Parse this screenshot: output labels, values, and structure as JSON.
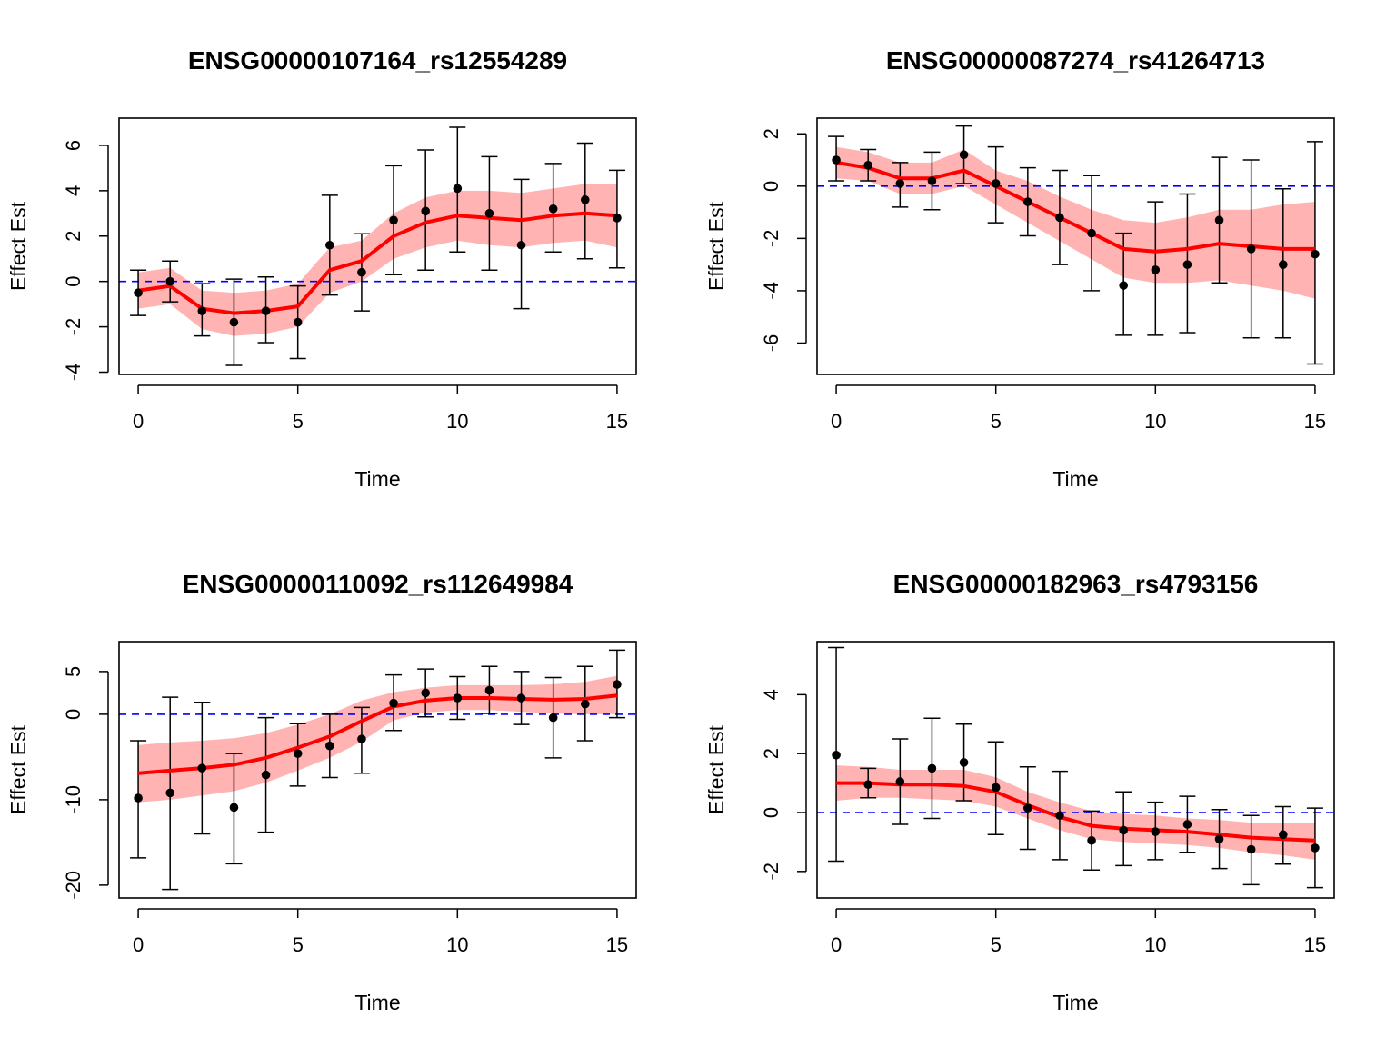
{
  "figure": {
    "colors": {
      "fit": "#ff0000",
      "band": "#ffb3b3",
      "zero_line": "#0000ff",
      "points": "#000000"
    }
  },
  "chart_data": [
    {
      "type": "line",
      "title": "ENSG00000107164_rs12554289",
      "xlabel": "Time",
      "ylabel": "Effect Est",
      "xlim": [
        -0.6,
        15.6
      ],
      "ylim": [
        -4.1,
        7.2
      ],
      "xticks": [
        0,
        5,
        10,
        15
      ],
      "yticks": [
        -4,
        -2,
        0,
        2,
        4,
        6
      ],
      "reference_line": 0,
      "x": [
        0,
        1,
        2,
        3,
        4,
        5,
        6,
        7,
        8,
        9,
        10,
        11,
        12,
        13,
        14,
        15
      ],
      "points": [
        -0.5,
        0.0,
        -1.3,
        -1.8,
        -1.3,
        -1.8,
        1.6,
        0.4,
        2.7,
        3.1,
        4.1,
        3.0,
        1.6,
        3.2,
        3.6,
        2.8
      ],
      "ci_low": [
        -1.5,
        -0.9,
        -2.4,
        -3.7,
        -2.7,
        -3.4,
        -0.6,
        -1.3,
        0.3,
        0.5,
        1.3,
        0.5,
        -1.2,
        1.3,
        1.0,
        0.6
      ],
      "ci_high": [
        0.5,
        0.9,
        -0.1,
        0.1,
        0.2,
        -0.2,
        3.8,
        2.1,
        5.1,
        5.8,
        6.8,
        5.5,
        4.5,
        5.2,
        6.1,
        4.9
      ],
      "fit": [
        -0.4,
        -0.2,
        -1.2,
        -1.4,
        -1.3,
        -1.1,
        0.5,
        0.9,
        2.0,
        2.6,
        2.9,
        2.8,
        2.7,
        2.9,
        3.0,
        2.9
      ],
      "band_low": [
        -1.2,
        -1.0,
        -2.1,
        -2.4,
        -2.3,
        -2.0,
        -0.5,
        0.0,
        1.0,
        1.5,
        1.8,
        1.6,
        1.5,
        1.7,
        1.8,
        1.5
      ],
      "band_high": [
        0.4,
        0.6,
        -0.4,
        -0.5,
        -0.4,
        -0.1,
        1.5,
        1.8,
        3.0,
        3.7,
        4.0,
        4.0,
        3.9,
        4.1,
        4.3,
        4.3
      ]
    },
    {
      "type": "line",
      "title": "ENSG00000087274_rs41264713",
      "xlabel": "Time",
      "ylabel": "Effect Est",
      "xlim": [
        -0.6,
        15.6
      ],
      "ylim": [
        -7.2,
        2.6
      ],
      "xticks": [
        0,
        5,
        10,
        15
      ],
      "yticks": [
        -6,
        -4,
        -2,
        0,
        2
      ],
      "reference_line": 0,
      "x": [
        0,
        1,
        2,
        3,
        4,
        5,
        6,
        7,
        8,
        9,
        10,
        11,
        12,
        13,
        14,
        15
      ],
      "points": [
        1.0,
        0.8,
        0.1,
        0.2,
        1.2,
        0.1,
        -0.6,
        -1.2,
        -1.8,
        -3.8,
        -3.2,
        -3.0,
        -1.3,
        -2.4,
        -3.0,
        -2.6
      ],
      "ci_low": [
        0.2,
        0.2,
        -0.8,
        -0.9,
        0.1,
        -1.4,
        -1.9,
        -3.0,
        -4.0,
        -5.7,
        -5.7,
        -5.6,
        -3.7,
        -5.8,
        -5.8,
        -6.8
      ],
      "ci_high": [
        1.9,
        1.4,
        0.9,
        1.3,
        2.3,
        1.5,
        0.7,
        0.6,
        0.4,
        -1.8,
        -0.6,
        -0.3,
        1.1,
        1.0,
        -0.1,
        1.7
      ],
      "fit": [
        0.9,
        0.7,
        0.3,
        0.3,
        0.6,
        0.0,
        -0.6,
        -1.2,
        -1.8,
        -2.4,
        -2.5,
        -2.4,
        -2.2,
        -2.3,
        -2.4,
        -2.4
      ],
      "band_low": [
        0.3,
        0.2,
        -0.3,
        -0.3,
        0.0,
        -0.7,
        -1.4,
        -2.1,
        -2.8,
        -3.5,
        -3.7,
        -3.7,
        -3.6,
        -3.8,
        -4.0,
        -4.3
      ],
      "band_high": [
        1.5,
        1.3,
        0.9,
        0.9,
        1.4,
        0.6,
        0.2,
        -0.4,
        -0.9,
        -1.3,
        -1.4,
        -1.2,
        -0.9,
        -0.9,
        -0.7,
        -0.6
      ]
    },
    {
      "type": "line",
      "title": "ENSG00000110092_rs112649984",
      "xlabel": "Time",
      "ylabel": "Effect Est",
      "xlim": [
        -0.6,
        15.6
      ],
      "ylim": [
        -21.5,
        8.5
      ],
      "xticks": [
        0,
        5,
        10,
        15
      ],
      "yticks": [
        -20,
        -10,
        0,
        5
      ],
      "reference_line": 0,
      "x": [
        0,
        1,
        2,
        3,
        4,
        5,
        6,
        7,
        8,
        9,
        10,
        11,
        12,
        13,
        14,
        15
      ],
      "points": [
        -9.8,
        -9.2,
        -6.3,
        -10.9,
        -7.1,
        -4.6,
        -3.7,
        -2.9,
        1.3,
        2.5,
        1.9,
        2.8,
        1.9,
        -0.4,
        1.2,
        3.5
      ],
      "ci_low": [
        -16.8,
        -20.5,
        -14.0,
        -17.5,
        -13.8,
        -8.4,
        -7.4,
        -6.9,
        -1.9,
        -0.3,
        -0.6,
        0.1,
        -1.2,
        -5.1,
        -3.1,
        -0.4
      ],
      "ci_high": [
        -3.1,
        2.0,
        1.4,
        -4.6,
        -0.4,
        -1.1,
        0.0,
        0.8,
        4.6,
        5.3,
        4.4,
        5.6,
        5.0,
        4.3,
        5.6,
        7.5
      ],
      "fit": [
        -6.9,
        -6.6,
        -6.3,
        -5.9,
        -5.1,
        -3.9,
        -2.6,
        -0.8,
        0.9,
        1.6,
        1.9,
        1.9,
        1.8,
        1.7,
        1.8,
        2.2
      ],
      "band_low": [
        -10.3,
        -10.0,
        -9.5,
        -9.0,
        -8.0,
        -6.6,
        -5.1,
        -3.2,
        -0.7,
        0.2,
        0.5,
        0.5,
        0.3,
        0.1,
        0.0,
        0.0
      ],
      "band_high": [
        -3.6,
        -3.3,
        -3.1,
        -2.8,
        -2.2,
        -1.2,
        0.0,
        1.6,
        2.6,
        3.1,
        3.4,
        3.4,
        3.4,
        3.5,
        3.8,
        4.5
      ]
    },
    {
      "type": "line",
      "title": "ENSG00000182963_rs4793156",
      "xlabel": "Time",
      "ylabel": "Effect Est",
      "xlim": [
        -0.6,
        15.6
      ],
      "ylim": [
        -2.9,
        5.8
      ],
      "xticks": [
        0,
        5,
        10,
        15
      ],
      "yticks": [
        -2,
        0,
        2,
        4
      ],
      "reference_line": 0,
      "x": [
        0,
        1,
        2,
        3,
        4,
        5,
        6,
        7,
        8,
        9,
        10,
        11,
        12,
        13,
        14,
        15
      ],
      "points": [
        1.95,
        0.95,
        1.05,
        1.5,
        1.7,
        0.85,
        0.15,
        -0.1,
        -0.95,
        -0.6,
        -0.65,
        -0.4,
        -0.9,
        -1.25,
        -0.75,
        -1.2
      ],
      "ci_low": [
        -1.65,
        0.5,
        -0.4,
        -0.2,
        0.4,
        -0.75,
        -1.25,
        -1.6,
        -1.95,
        -1.8,
        -1.6,
        -1.35,
        -1.9,
        -2.45,
        -1.75,
        -2.55
      ],
      "ci_high": [
        5.6,
        1.5,
        2.5,
        3.2,
        3.0,
        2.4,
        1.55,
        1.4,
        0.05,
        0.7,
        0.35,
        0.55,
        0.1,
        -0.1,
        0.2,
        0.15
      ],
      "fit": [
        1.0,
        1.0,
        0.95,
        0.95,
        0.9,
        0.7,
        0.25,
        -0.15,
        -0.45,
        -0.55,
        -0.6,
        -0.65,
        -0.75,
        -0.85,
        -0.9,
        -0.95
      ],
      "band_low": [
        0.4,
        0.5,
        0.5,
        0.45,
        0.4,
        0.2,
        -0.2,
        -0.6,
        -0.9,
        -1.0,
        -1.05,
        -1.1,
        -1.2,
        -1.35,
        -1.45,
        -1.6
      ],
      "band_high": [
        1.6,
        1.55,
        1.45,
        1.45,
        1.45,
        1.2,
        0.7,
        0.35,
        0.05,
        -0.05,
        -0.1,
        -0.2,
        -0.25,
        -0.35,
        -0.35,
        -0.35
      ]
    }
  ]
}
